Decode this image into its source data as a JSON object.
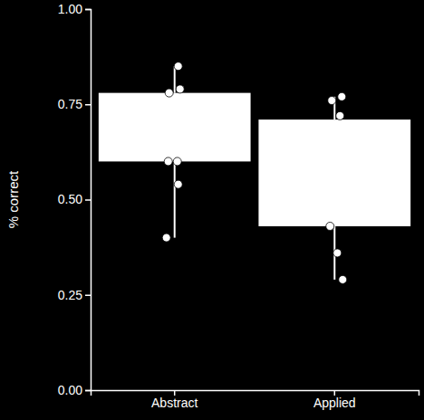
{
  "chart_data": {
    "type": "box",
    "y_label": "% correct",
    "categories": [
      "Abstract",
      "Applied"
    ],
    "boxes": [
      {
        "min": 0.4,
        "q1": 0.6,
        "q3": 0.78,
        "max": 0.85
      },
      {
        "min": 0.29,
        "q1": 0.43,
        "q3": 0.71,
        "max": 0.77
      }
    ],
    "points": [
      [
        0.85,
        0.79,
        0.78,
        0.6,
        0.6,
        0.54,
        0.4
      ],
      [
        0.77,
        0.76,
        0.72,
        0.43,
        0.36,
        0.29
      ]
    ],
    "color": "#ffffff",
    "ylim": [
      0,
      1
    ],
    "yticks": [
      {
        "value": 0,
        "label": "0.00"
      },
      {
        "value": 0.25,
        "label": "0.25"
      },
      {
        "value": 0.5,
        "label": "0.50"
      },
      {
        "value": 0.75,
        "label": "0.75"
      },
      {
        "value": 1,
        "label": "1.00"
      }
    ],
    "grid": false
  }
}
